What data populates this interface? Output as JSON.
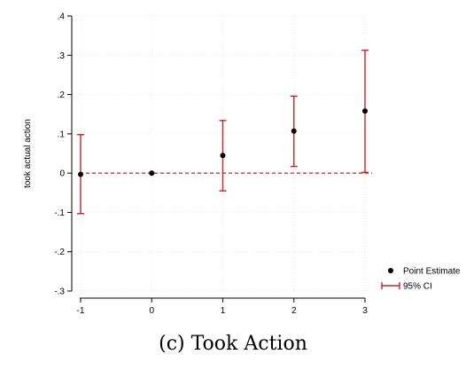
{
  "caption": "(c) Took Action",
  "chart_data": {
    "type": "scatter",
    "title": "",
    "xlabel": "",
    "ylabel": "took actual action",
    "x": [
      -1,
      0,
      1,
      2,
      3
    ],
    "series": [
      {
        "name": "Point Estimate",
        "kind": "point",
        "color": "#000000",
        "values": [
          -0.003,
          0.0,
          0.045,
          0.107,
          0.158
        ]
      },
      {
        "name": "95% CI",
        "kind": "errorbar",
        "color": "#cc2222",
        "lower": [
          -0.103,
          0.0,
          -0.045,
          0.017,
          0.002
        ],
        "upper": [
          0.098,
          0.0,
          0.134,
          0.196,
          0.313
        ]
      }
    ],
    "xlim": [
      -1,
      3
    ],
    "ylim": [
      -0.3,
      0.4
    ],
    "xticks": [
      -1,
      0,
      1,
      2,
      3
    ],
    "yticks": [
      -0.3,
      -0.2,
      -0.1,
      0,
      0.1,
      0.2,
      0.3,
      0.4
    ],
    "xtick_labels": [
      "-1",
      "0",
      "1",
      "2",
      "3"
    ],
    "ytick_labels": [
      "-.3",
      "-.2",
      "-.1",
      "0",
      ".1",
      ".2",
      ".3",
      ".4"
    ],
    "reference_line": {
      "y": 0,
      "style": "dashed",
      "color": "#cc2222"
    },
    "grid": true,
    "legend_position": "bottom-right"
  }
}
